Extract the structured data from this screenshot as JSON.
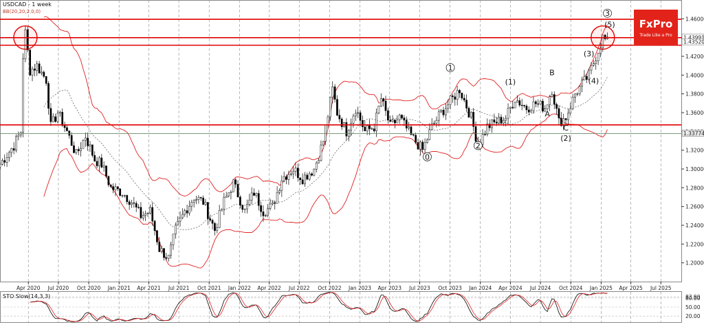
{
  "header": {
    "symbol": "USDCAD - 1 week",
    "indicator": "BB(20,20,2.0,0)"
  },
  "stoch": {
    "label": "STO Slow(14,3,3)",
    "readout_k": "83.90",
    "readout_d": "80.00"
  },
  "logo": {
    "brand": "FxPro",
    "tagline": "Trade Like a Pro",
    "color": "#e2231a"
  },
  "price_tags": {
    "current": "1.43991",
    "level2": "1.43520",
    "support": "1.33774"
  },
  "colors": {
    "candle_up": "#ffffff",
    "candle_down": "#000000",
    "bands": "#e02020",
    "midline": "#555555",
    "resistance": "#e00000",
    "stoch_k": "#000000",
    "stoch_d": "#e02020"
  },
  "annotations": [
    {
      "id": "wave-0",
      "text": "0",
      "circled": true
    },
    {
      "id": "wave-1",
      "text": "1",
      "circled": true
    },
    {
      "id": "wave-2",
      "text": "2",
      "circled": true
    },
    {
      "id": "wave-3",
      "text": "3",
      "circled": true
    },
    {
      "id": "wave-p1",
      "text": "(1)",
      "circled": false
    },
    {
      "id": "wave-A",
      "text": "A",
      "circled": false
    },
    {
      "id": "wave-B",
      "text": "B",
      "circled": false
    },
    {
      "id": "wave-C",
      "text": "C",
      "circled": false
    },
    {
      "id": "wave-p2",
      "text": "(2)",
      "circled": false
    },
    {
      "id": "wave-p3",
      "text": "(3)",
      "circled": false
    },
    {
      "id": "wave-p4",
      "text": "(4)",
      "circled": false
    },
    {
      "id": "wave-p5",
      "text": "(5)",
      "circled": false
    }
  ],
  "chart_data": {
    "type": "candlestick",
    "title": "USDCAD - 1 week",
    "ylim": [
      1.18,
      1.48
    ],
    "y_ticks": [
      "1.46000",
      "1.44000",
      "1.42000",
      "1.40000",
      "1.38000",
      "1.36000",
      "1.34000",
      "1.32000",
      "1.30000",
      "1.28000",
      "1.26000",
      "1.24000",
      "1.22000",
      "1.20000"
    ],
    "x_ticks": [
      "Apr 2020",
      "Jul 2020",
      "Oct 2020",
      "Jan 2021",
      "Apr 2021",
      "Jul 2021",
      "Oct 2021",
      "Jan 2022",
      "Apr 2022",
      "Jul 2022",
      "Oct 2022",
      "Jan 2023",
      "Apr 2023",
      "Jul 2023",
      "Oct 2023",
      "Jan 2024",
      "Apr 2024",
      "Jul 2024",
      "Oct 2024",
      "Jan 2025",
      "Apr 2025",
      "Jul 2025"
    ],
    "x_range": [
      "2020-01-06",
      "2025-09-01"
    ],
    "close_path": [
      [
        "2020-01-06",
        1.305
      ],
      [
        "2020-02-17",
        1.325
      ],
      [
        "2020-03-09",
        1.34
      ],
      [
        "2020-03-16",
        1.42
      ],
      [
        "2020-03-23",
        1.445
      ],
      [
        "2020-04-06",
        1.405
      ],
      [
        "2020-04-27",
        1.41
      ],
      [
        "2020-05-25",
        1.395
      ],
      [
        "2020-06-08",
        1.345
      ],
      [
        "2020-06-29",
        1.36
      ],
      [
        "2020-07-27",
        1.34
      ],
      [
        "2020-08-24",
        1.315
      ],
      [
        "2020-09-21",
        1.335
      ],
      [
        "2020-10-19",
        1.31
      ],
      [
        "2020-11-09",
        1.305
      ],
      [
        "2020-12-07",
        1.28
      ],
      [
        "2021-01-11",
        1.275
      ],
      [
        "2021-02-08",
        1.265
      ],
      [
        "2021-03-08",
        1.25
      ],
      [
        "2021-04-05",
        1.255
      ],
      [
        "2021-05-03",
        1.215
      ],
      [
        "2021-05-31",
        1.205
      ],
      [
        "2021-06-21",
        1.235
      ],
      [
        "2021-07-19",
        1.255
      ],
      [
        "2021-08-16",
        1.27
      ],
      [
        "2021-09-13",
        1.265
      ],
      [
        "2021-10-18",
        1.235
      ],
      [
        "2021-11-15",
        1.265
      ],
      [
        "2021-12-13",
        1.285
      ],
      [
        "2022-01-17",
        1.255
      ],
      [
        "2022-02-14",
        1.275
      ],
      [
        "2022-03-14",
        1.255
      ],
      [
        "2022-04-11",
        1.26
      ],
      [
        "2022-05-09",
        1.29
      ],
      [
        "2022-06-13",
        1.3
      ],
      [
        "2022-07-11",
        1.29
      ],
      [
        "2022-08-15",
        1.3
      ],
      [
        "2022-09-12",
        1.33
      ],
      [
        "2022-10-10",
        1.385
      ],
      [
        "2022-10-24",
        1.36
      ],
      [
        "2022-11-21",
        1.34
      ],
      [
        "2022-12-19",
        1.365
      ],
      [
        "2023-01-16",
        1.34
      ],
      [
        "2023-02-13",
        1.345
      ],
      [
        "2023-03-06",
        1.375
      ],
      [
        "2023-04-03",
        1.345
      ],
      [
        "2023-05-01",
        1.355
      ],
      [
        "2023-06-05",
        1.335
      ],
      [
        "2023-07-10",
        1.32
      ],
      [
        "2023-08-07",
        1.345
      ],
      [
        "2023-09-04",
        1.36
      ],
      [
        "2023-10-09",
        1.375
      ],
      [
        "2023-10-30",
        1.385
      ],
      [
        "2023-12-04",
        1.355
      ],
      [
        "2023-12-25",
        1.325
      ],
      [
        "2024-01-22",
        1.345
      ],
      [
        "2024-02-19",
        1.35
      ],
      [
        "2024-03-18",
        1.355
      ],
      [
        "2024-04-15",
        1.375
      ],
      [
        "2024-05-20",
        1.365
      ],
      [
        "2024-06-17",
        1.37
      ],
      [
        "2024-07-15",
        1.365
      ],
      [
        "2024-08-05",
        1.385
      ],
      [
        "2024-08-26",
        1.35
      ],
      [
        "2024-09-16",
        1.355
      ],
      [
        "2024-10-14",
        1.38
      ],
      [
        "2024-11-04",
        1.39
      ],
      [
        "2024-11-25",
        1.4
      ],
      [
        "2024-12-16",
        1.42
      ],
      [
        "2025-01-06",
        1.44
      ],
      [
        "2025-01-20",
        1.435
      ]
    ],
    "resistance_lines": [
      1.4595,
      1.4399,
      1.4318,
      1.347
    ],
    "support_line": 1.33774,
    "stoch_ticks": [
      "83.90",
      "80.00",
      "50.00",
      "20.00"
    ]
  }
}
